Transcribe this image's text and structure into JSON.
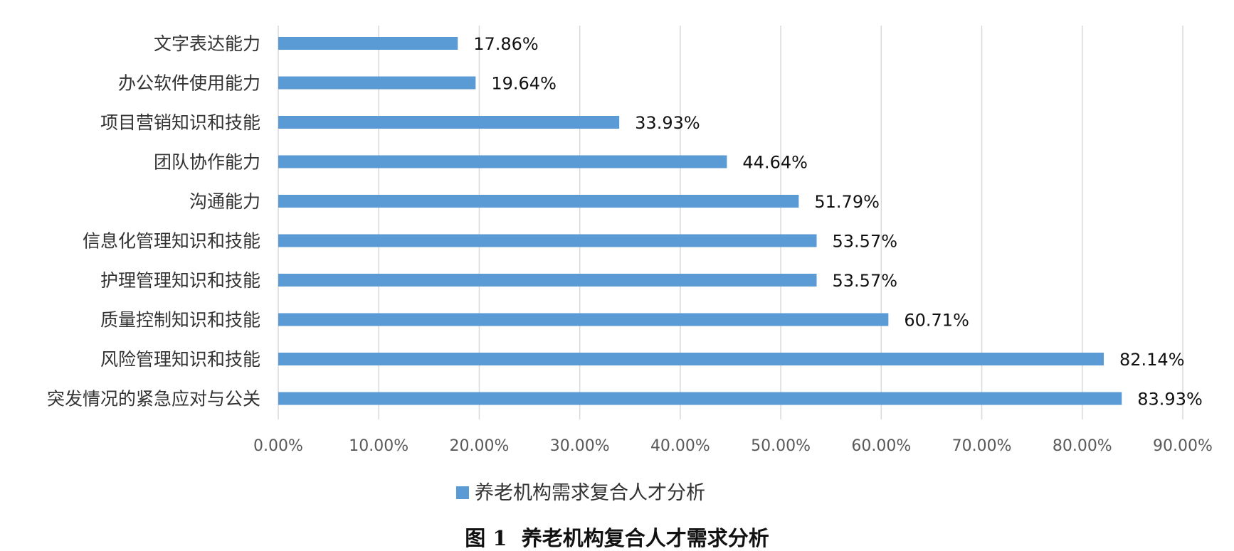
{
  "chart_data": {
    "type": "bar",
    "orientation": "horizontal",
    "categories": [
      "文字表达能力",
      "办公软件使用能力",
      "项目营销知识和技能",
      "团队协作能力",
      "沟通能力",
      "信息化管理知识和技能",
      "护理管理知识和技能",
      "质量控制知识和技能",
      "风险管理知识和技能",
      "突发情况的紧急应对与公关"
    ],
    "series": [
      {
        "name": "养老机构需求复合人才分析",
        "values": [
          17.86,
          19.64,
          33.93,
          44.64,
          51.79,
          53.57,
          53.57,
          60.71,
          82.14,
          83.93
        ],
        "value_labels": [
          "17.86%",
          "19.64%",
          "33.93%",
          "44.64%",
          "51.79%",
          "53.57%",
          "53.57%",
          "60.71%",
          "82.14%",
          "83.93%"
        ]
      }
    ],
    "xlim": [
      0,
      90
    ],
    "x_ticks": [
      0,
      10,
      20,
      30,
      40,
      50,
      60,
      70,
      80,
      90
    ],
    "x_tick_labels": [
      "0.00%",
      "10.00%",
      "20.00%",
      "30.00%",
      "40.00%",
      "50.00%",
      "60.00%",
      "70.00%",
      "80.00%",
      "90.00%"
    ],
    "grid": "vertical",
    "legend_position": "bottom",
    "caption": "图 1  养老机构复合人才需求分析",
    "colors": {
      "bar": "#5b9bd5",
      "grid": "#d9d9d9"
    }
  }
}
